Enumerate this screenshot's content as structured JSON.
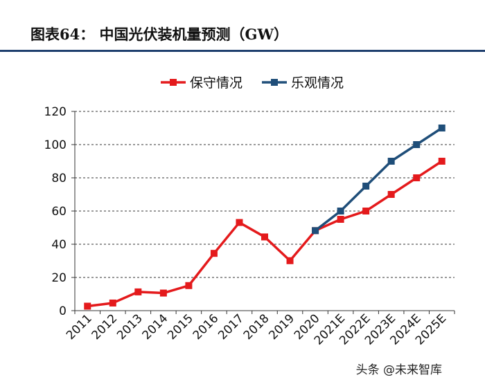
{
  "header": {
    "title": "图表64：  中国光伏装机量预测（GW）"
  },
  "watermark": {
    "text": "头条 @未来智库"
  },
  "chart_data": {
    "type": "line",
    "title": "图表64：  中国光伏装机量预测（GW）",
    "xlabel": "",
    "ylabel": "",
    "ylim": [
      0,
      120
    ],
    "yticks": [
      0,
      20,
      40,
      60,
      80,
      100,
      120
    ],
    "grid": true,
    "legend_position": "top-center",
    "categories": [
      "2011",
      "2012",
      "2013",
      "2014",
      "2015",
      "2016",
      "2017",
      "2018",
      "2019",
      "2020",
      "2021E",
      "2022E",
      "2023E",
      "2024E",
      "2025E"
    ],
    "series": [
      {
        "name": "保守情况",
        "color": "#e41a1c",
        "values": [
          2.7,
          4.6,
          11.3,
          10.6,
          15.1,
          34.5,
          53.1,
          44.4,
          30.1,
          48.2,
          55,
          60,
          70,
          80,
          90
        ]
      },
      {
        "name": "乐观情况",
        "color": "#1f4e79",
        "values": [
          null,
          null,
          null,
          null,
          null,
          null,
          null,
          null,
          null,
          48.2,
          60,
          75,
          90,
          100,
          110
        ]
      }
    ]
  }
}
